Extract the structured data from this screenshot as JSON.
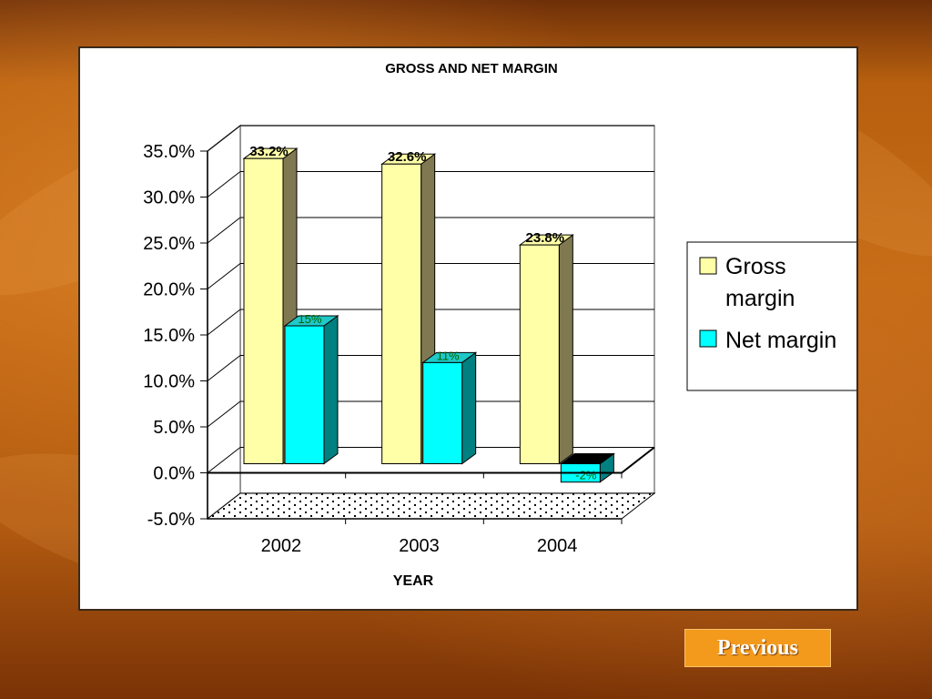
{
  "chart_data": {
    "type": "bar",
    "title": "GROSS AND NET MARGIN",
    "xlabel": "YEAR",
    "ylabel": "",
    "categories": [
      "2002",
      "2003",
      "2004"
    ],
    "series": [
      {
        "name": "Gross margin",
        "values": [
          33.2,
          32.6,
          23.8
        ],
        "labels": [
          "33.2%",
          "32.6%",
          "23.8%"
        ]
      },
      {
        "name": "Net margin",
        "values": [
          15,
          11,
          -2
        ],
        "labels": [
          "15%",
          "11%",
          "-2%"
        ]
      }
    ],
    "ylim": [
      -5,
      35
    ],
    "yticks": [
      "-5.0%",
      "0.0%",
      "5.0%",
      "10.0%",
      "15.0%",
      "20.0%",
      "25.0%",
      "30.0%",
      "35.0%"
    ],
    "grid": true,
    "legend": "right",
    "three_d": true,
    "colors": {
      "gross_front": "#ffffa8",
      "gross_side": "#807850",
      "net_front": "#00ffff",
      "net_side": "#008080",
      "net_top": "#20c8c8",
      "gross_label": "#000000",
      "net_label": "#006400"
    }
  },
  "nav": {
    "previous_label": "Previous"
  }
}
